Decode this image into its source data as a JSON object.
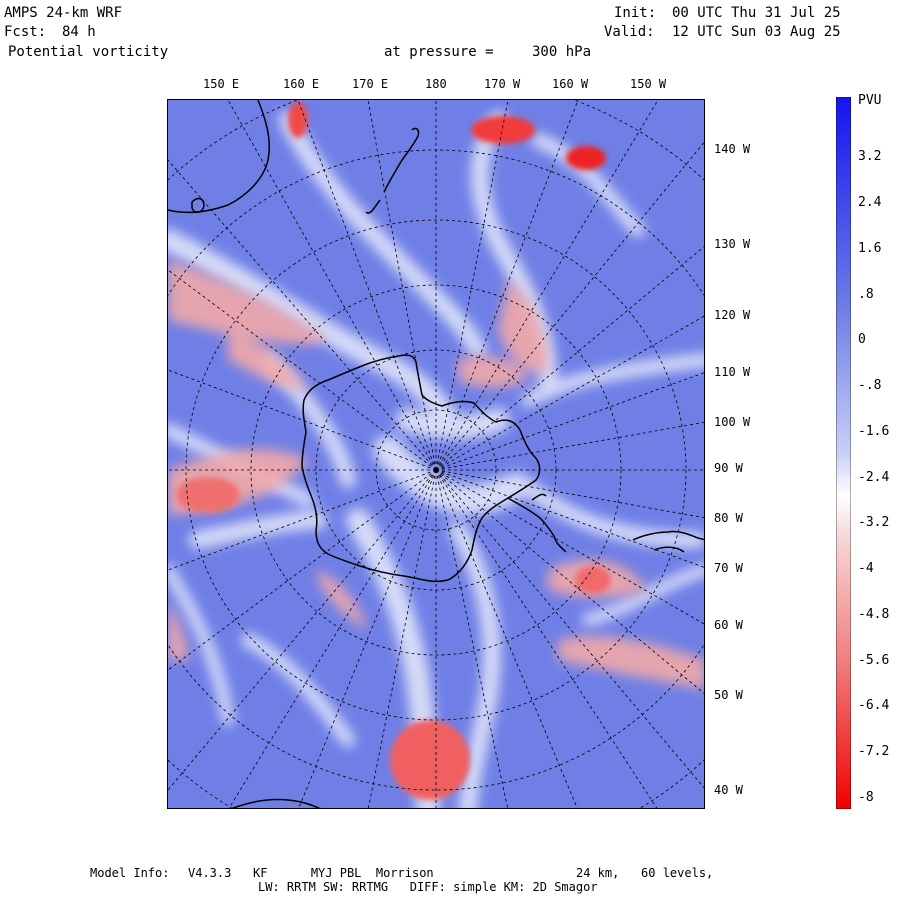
{
  "header": {
    "model": "AMPS 24-km WRF",
    "forecast_label": "Fcst:",
    "forecast_value": "84 h",
    "field": "Potential vorticity",
    "pressure_label": "at pressure =",
    "pressure_value": "300 hPa",
    "init_label": "Init:",
    "init_value": "00 UTC Thu 31 Jul 25",
    "valid_label": "Valid:",
    "valid_value": "12 UTC Sun 03 Aug 25"
  },
  "map": {
    "projection": "polar stereographic, South Pole",
    "top_longitude_labels": [
      "150 E",
      "160 E",
      "170 E",
      "180",
      "170 W",
      "160 W",
      "150 W"
    ],
    "right_longitude_labels": [
      "140 W",
      "130 W",
      "120 W",
      "110 W",
      "100 W",
      "90 W",
      "80 W",
      "70 W",
      "60 W",
      "50 W",
      "40 W"
    ],
    "colors": {
      "positive": "#2b2bf0",
      "negative": "#f00000",
      "background_field": "#6f7fe6"
    }
  },
  "colorbar": {
    "unit": "PVU",
    "tick_labels": [
      "3.2",
      "2.4",
      "1.6",
      ".8",
      "0",
      "-.8",
      "-1.6",
      "-2.4",
      "-3.2",
      "-4",
      "-4.8",
      "-5.6",
      "-6.4",
      "-7.2",
      "-8"
    ]
  },
  "footer": {
    "line1_label": "Model Info:",
    "line1_items": "V4.3.3   KF      MYJ PBL  Morrison",
    "line1_grid": "24 km,   60 levels,",
    "line2": "LW: RRTM SW: RRTMG   DIFF: simple KM: 2D Smagor"
  }
}
